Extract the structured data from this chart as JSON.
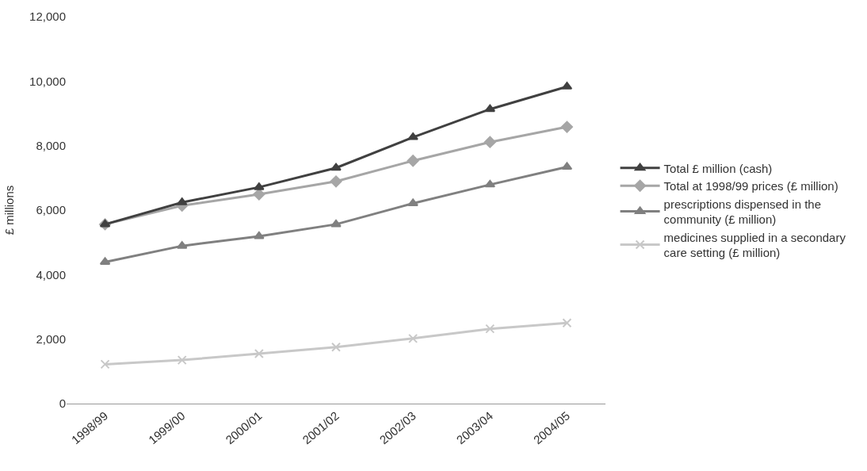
{
  "chart_data": {
    "type": "line",
    "ylabel": "£ millions",
    "categories": [
      "1998/99",
      "1999/00",
      "2000/01",
      "2001/02",
      "2002/03",
      "2003/04",
      "2004/05"
    ],
    "series": [
      {
        "name": "Total £ million (cash)",
        "color": "#404040",
        "marker": "triangle",
        "values": [
          5560,
          6240,
          6710,
          7310,
          8260,
          9130,
          9830
        ]
      },
      {
        "name": "Total at 1998/99 prices (£ million)",
        "color": "#a6a6a6",
        "marker": "diamond",
        "values": [
          5560,
          6140,
          6490,
          6890,
          7530,
          8110,
          8580
        ]
      },
      {
        "name": "prescriptions dispensed in the community (£ million)",
        "color": "#808080",
        "marker": "triangle",
        "values": [
          4390,
          4890,
          5190,
          5560,
          6210,
          6790,
          7340
        ]
      },
      {
        "name": "medicines supplied in a secondary care setting (£ million)",
        "color": "#c8c8c8",
        "marker": "cross",
        "values": [
          1220,
          1350,
          1550,
          1750,
          2020,
          2320,
          2500
        ]
      }
    ],
    "ylim": [
      0,
      12000
    ],
    "yticks": [
      {
        "value": 0,
        "label": "0"
      },
      {
        "value": 2000,
        "label": "2,000"
      },
      {
        "value": 4000,
        "label": "4,000"
      },
      {
        "value": 6000,
        "label": "6,000"
      },
      {
        "value": 8000,
        "label": "8,000"
      },
      {
        "value": 10000,
        "label": "10,000"
      },
      {
        "value": 12000,
        "label": "12,000"
      }
    ],
    "legend": "right",
    "line_style": "solid"
  }
}
